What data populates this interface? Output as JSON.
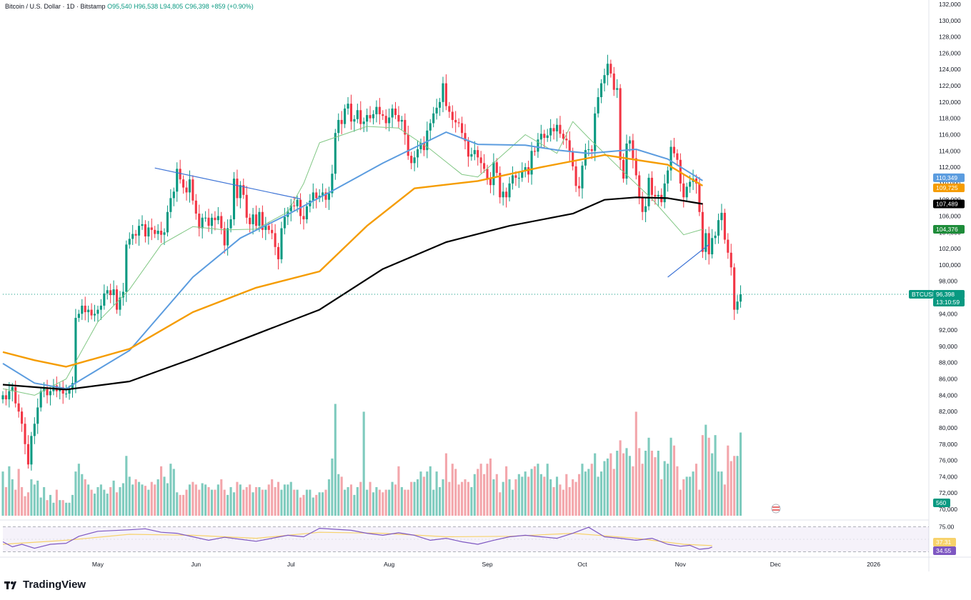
{
  "header": {
    "symbol": "Bitcoin / U.S. Dollar · 1D · Bitstamp",
    "open": "O95,540",
    "high": "H96,538",
    "low": "L94,805",
    "close": "C96,398",
    "change": "+859 (+0.90%)"
  },
  "brand": {
    "name": "TradingView"
  },
  "colors": {
    "up": "#089981",
    "down": "#f23645",
    "ma_black": "#000000",
    "ma_orange": "#f59c00",
    "ma_blue": "#5b9cdf",
    "ma_green": "#81c784",
    "trendline": "#3e74d6",
    "rsi": "#7e57c2",
    "rsi_ma": "#f7d26b"
  },
  "chart_data": {
    "type": "candlestick",
    "title": "Bitcoin / U.S. Dollar · 1D · Bitstamp",
    "ylim": [
      70000,
      132000
    ],
    "y_ticks": [
      "132,000",
      "130,000",
      "128,000",
      "126,000",
      "124,000",
      "122,000",
      "120,000",
      "118,000",
      "116,000",
      "114,000",
      "112,000",
      "110,000",
      "108,000",
      "106,000",
      "104,000",
      "102,000",
      "100,000",
      "98,000",
      "96,000",
      "94,000",
      "92,000",
      "90,000",
      "88,000",
      "86,000",
      "84,000",
      "82,000",
      "80,000",
      "78,000",
      "76,000",
      "74,000",
      "72,000",
      "70,000"
    ],
    "x_labels": [
      {
        "label": "May",
        "day": 30
      },
      {
        "label": "Jun",
        "day": 61
      },
      {
        "label": "Jul",
        "day": 91
      },
      {
        "label": "Aug",
        "day": 122
      },
      {
        "label": "Sep",
        "day": 153
      },
      {
        "label": "Oct",
        "day": 183
      },
      {
        "label": "Nov",
        "day": 214
      },
      {
        "label": "Dec",
        "day": 244
      },
      {
        "label": "2026",
        "day": 275
      }
    ],
    "x_range_days": [
      0,
      292
    ],
    "closes": [
      84000,
      83500,
      84500,
      85000,
      83000,
      82000,
      80500,
      78000,
      75500,
      79000,
      80500,
      82500,
      84500,
      84800,
      84000,
      84500,
      85200,
      84500,
      85000,
      84200,
      84200,
      84700,
      85500,
      93500,
      94000,
      95000,
      94200,
      94500,
      93800,
      94000,
      94500,
      95000,
      96500,
      96900,
      96300,
      97000,
      94500,
      96000,
      96700,
      102500,
      103200,
      103800,
      103600,
      104800,
      105000,
      103500,
      104600,
      104300,
      103800,
      104200,
      103700,
      104000,
      106500,
      108200,
      109000,
      111800,
      110500,
      109500,
      108900,
      110500,
      107900,
      106300,
      104500,
      105800,
      105800,
      104800,
      105800,
      105500,
      106000,
      104500,
      102400,
      104500,
      105600,
      110600,
      108200,
      109800,
      108600,
      105800,
      105000,
      106200,
      104800,
      106500,
      104300,
      104800,
      104300,
      103900,
      102200,
      100700,
      104500,
      105900,
      106600,
      107300,
      107200,
      108000,
      106000,
      105600,
      107200,
      107900,
      108900,
      108200,
      108500,
      108900,
      108000,
      108800,
      111200,
      116200,
      117800,
      117300,
      119200,
      119800,
      117600,
      117900,
      119000,
      117300,
      117600,
      118400,
      118000,
      118500,
      119400,
      118500,
      118300,
      117400,
      118100,
      119200,
      118400,
      117600,
      117800,
      116000,
      113400,
      112500,
      113200,
      114200,
      115000,
      114100,
      116500,
      117400,
      118600,
      119300,
      120000,
      122300,
      119500,
      118800,
      117800,
      117500,
      117400,
      116200,
      115200,
      113300,
      113600,
      114100,
      113200,
      112500,
      111800,
      110600,
      109800,
      112600,
      111300,
      108300,
      109000,
      108300,
      110000,
      111000,
      110700,
      110700,
      111500,
      112000,
      111100,
      114000,
      113900,
      115400,
      116100,
      115600,
      115900,
      116800,
      116400,
      117200,
      116100,
      115500,
      115300,
      113900,
      112100,
      109700,
      109400,
      112200,
      114100,
      114200,
      114000,
      118600,
      120600,
      122300,
      123300,
      124700,
      123500,
      121500,
      121700,
      112900,
      110600,
      114900,
      115300,
      113100,
      111000,
      108200,
      106500,
      107200,
      110700,
      108600,
      108400,
      108600,
      107700,
      110000,
      111600,
      114500,
      113700,
      112900,
      110000,
      108300,
      109600,
      110200,
      110600,
      110000,
      106500,
      101600,
      103900,
      101300,
      103300,
      103600,
      105500,
      106400,
      103100,
      101500,
      99700,
      94500,
      95500,
      96398
    ],
    "ma_black": {
      "name": "MA black",
      "start_day": 0,
      "end_day": 221,
      "points": [
        [
          0,
          85300
        ],
        [
          20,
          84700
        ],
        [
          40,
          85700
        ],
        [
          60,
          88500
        ],
        [
          80,
          91500
        ],
        [
          100,
          94500
        ],
        [
          120,
          99500
        ],
        [
          140,
          102800
        ],
        [
          160,
          104800
        ],
        [
          180,
          106300
        ],
        [
          190,
          108000
        ],
        [
          200,
          108300
        ],
        [
          210,
          108200
        ],
        [
          221,
          107489
        ]
      ]
    },
    "ma_orange": {
      "name": "MA orange",
      "start_day": 0,
      "end_day": 221,
      "points": [
        [
          0,
          89300
        ],
        [
          10,
          88300
        ],
        [
          20,
          87500
        ],
        [
          40,
          89700
        ],
        [
          60,
          94200
        ],
        [
          80,
          97200
        ],
        [
          100,
          99200
        ],
        [
          115,
          104800
        ],
        [
          130,
          109400
        ],
        [
          150,
          110300
        ],
        [
          170,
          112000
        ],
        [
          190,
          113500
        ],
        [
          210,
          112300
        ],
        [
          221,
          109725
        ]
      ]
    },
    "ma_blue": {
      "name": "MA blue",
      "start_day": 0,
      "end_day": 221,
      "points": [
        [
          0,
          87900
        ],
        [
          10,
          85500
        ],
        [
          20,
          84800
        ],
        [
          40,
          89500
        ],
        [
          60,
          98500
        ],
        [
          75,
          103300
        ],
        [
          90,
          106200
        ],
        [
          105,
          109300
        ],
        [
          120,
          112500
        ],
        [
          140,
          116300
        ],
        [
          150,
          114800
        ],
        [
          165,
          114700
        ],
        [
          175,
          114100
        ],
        [
          185,
          113700
        ],
        [
          200,
          114200
        ],
        [
          210,
          113000
        ],
        [
          221,
          110349
        ]
      ]
    },
    "ma_green": {
      "name": "MA green",
      "start_day": 0,
      "end_day": 221,
      "points": [
        [
          0,
          84800
        ],
        [
          10,
          84000
        ],
        [
          20,
          86000
        ],
        [
          30,
          93000
        ],
        [
          40,
          97000
        ],
        [
          50,
          102500
        ],
        [
          60,
          104700
        ],
        [
          70,
          104300
        ],
        [
          80,
          104400
        ],
        [
          90,
          106500
        ],
        [
          95,
          110000
        ],
        [
          100,
          115000
        ],
        [
          115,
          117000
        ],
        [
          125,
          116800
        ],
        [
          135,
          114200
        ],
        [
          145,
          111100
        ],
        [
          150,
          110800
        ],
        [
          165,
          116000
        ],
        [
          175,
          113700
        ],
        [
          180,
          117600
        ],
        [
          185,
          115600
        ],
        [
          195,
          111800
        ],
        [
          205,
          108100
        ],
        [
          215,
          103700
        ],
        [
          221,
          104376
        ]
      ]
    },
    "trendlines": [
      {
        "name": "descending resistance",
        "points": [
          [
            48,
            111900
          ],
          [
            94,
            108100
          ]
        ]
      },
      {
        "name": "support line",
        "points": [
          [
            210,
            98500
          ],
          [
            223,
            102500
          ]
        ]
      }
    ],
    "volume": {
      "unit": "volume",
      "last_value": "560",
      "ylim": [
        0,
        100
      ],
      "bars": [
        34,
        22,
        38,
        28,
        20,
        36,
        22,
        15,
        18,
        28,
        24,
        27,
        14,
        22,
        12,
        16,
        10,
        20,
        12,
        12,
        10,
        10,
        16,
        34,
        40,
        32,
        28,
        24,
        20,
        17,
        22,
        24,
        20,
        17,
        22,
        27,
        18,
        22,
        25,
        46,
        30,
        24,
        28,
        26,
        24,
        23,
        20,
        26,
        24,
        28,
        38,
        30,
        25,
        40,
        36,
        18,
        16,
        16,
        20,
        24,
        26,
        24,
        20,
        25,
        24,
        22,
        20,
        20,
        24,
        28,
        20,
        16,
        22,
        18,
        26,
        24,
        20,
        22,
        24,
        18,
        22,
        22,
        20,
        20,
        24,
        28,
        22,
        26,
        20,
        24,
        24,
        26,
        20,
        20,
        14,
        16,
        20,
        20,
        14,
        16,
        18,
        18,
        20,
        28,
        44,
        86,
        32,
        30,
        20,
        22,
        24,
        16,
        22,
        26,
        80,
        20,
        26,
        18,
        22,
        20,
        18,
        20,
        20,
        26,
        24,
        38,
        22,
        20,
        20,
        26,
        26,
        28,
        34,
        30,
        34,
        38,
        20,
        34,
        22,
        28,
        48,
        26,
        40,
        36,
        24,
        26,
        28,
        26,
        22,
        32,
        36,
        40,
        32,
        40,
        44,
        28,
        32,
        18,
        26,
        38,
        28,
        20,
        28,
        32,
        30,
        34,
        30,
        36,
        38,
        40,
        32,
        30,
        40,
        28,
        22,
        30,
        24,
        20,
        32,
        22,
        28,
        26,
        32,
        40,
        34,
        36,
        40,
        48,
        30,
        34,
        42,
        44,
        48,
        36,
        50,
        58,
        48,
        52,
        46,
        38,
        80,
        52,
        40,
        50,
        60,
        50,
        45,
        50,
        28,
        42,
        40,
        60,
        54,
        38,
        20,
        28,
        30,
        30,
        34,
        40,
        20,
        62,
        70,
        60,
        48,
        62,
        34,
        34,
        24,
        54,
        42,
        46,
        46,
        64,
        40,
        28,
        42,
        42,
        44,
        46,
        54,
        100,
        90,
        50,
        10
      ]
    },
    "rsi": {
      "ylim": [
        20,
        80
      ],
      "levels": {
        "upper": "75.00",
        "lower": "25.00"
      },
      "rsi_value": "34.55",
      "rsi_ma_value": "37.31",
      "points": [
        [
          0,
          45
        ],
        [
          3,
          35
        ],
        [
          6,
          40
        ],
        [
          10,
          32
        ],
        [
          15,
          40
        ],
        [
          20,
          42
        ],
        [
          24,
          56
        ],
        [
          30,
          66
        ],
        [
          40,
          69
        ],
        [
          45,
          71
        ],
        [
          50,
          64
        ],
        [
          55,
          62
        ],
        [
          60,
          55
        ],
        [
          65,
          48
        ],
        [
          70,
          54
        ],
        [
          75,
          50
        ],
        [
          80,
          46
        ],
        [
          85,
          52
        ],
        [
          90,
          58
        ],
        [
          95,
          55
        ],
        [
          100,
          72
        ],
        [
          105,
          70
        ],
        [
          110,
          68
        ],
        [
          115,
          62
        ],
        [
          120,
          58
        ],
        [
          125,
          63
        ],
        [
          130,
          58
        ],
        [
          135,
          48
        ],
        [
          140,
          52
        ],
        [
          145,
          45
        ],
        [
          150,
          40
        ],
        [
          155,
          48
        ],
        [
          160,
          55
        ],
        [
          165,
          58
        ],
        [
          170,
          55
        ],
        [
          175,
          52
        ],
        [
          180,
          62
        ],
        [
          185,
          74
        ],
        [
          190,
          55
        ],
        [
          195,
          52
        ],
        [
          200,
          48
        ],
        [
          205,
          52
        ],
        [
          210,
          40
        ],
        [
          214,
          36
        ],
        [
          217,
          38
        ],
        [
          220,
          30
        ],
        [
          223,
          32
        ],
        [
          224,
          34.55
        ]
      ],
      "ma_points": [
        [
          0,
          40
        ],
        [
          20,
          48
        ],
        [
          40,
          60
        ],
        [
          60,
          58
        ],
        [
          80,
          52
        ],
        [
          100,
          64
        ],
        [
          120,
          62
        ],
        [
          140,
          55
        ],
        [
          160,
          56
        ],
        [
          180,
          62
        ],
        [
          200,
          52
        ],
        [
          215,
          40
        ],
        [
          224,
          37.31
        ]
      ]
    },
    "price_tags": [
      {
        "label": "110,349",
        "value": 110349,
        "color": "#5b9cdf"
      },
      {
        "label": "109,725",
        "value": 109725,
        "color": "#f59c00"
      },
      {
        "label": "107,489",
        "value": 107489,
        "color": "#000000"
      },
      {
        "label": "104,376",
        "value": 104376,
        "color": "#1e8c3a"
      },
      {
        "label": "BTCUSD",
        "value": 96398,
        "color": "#089981"
      },
      {
        "label": "96,398",
        "value": 96398,
        "color": "#089981"
      },
      {
        "label": "13:10:59",
        "value": 96398,
        "color": "#089981"
      }
    ]
  }
}
